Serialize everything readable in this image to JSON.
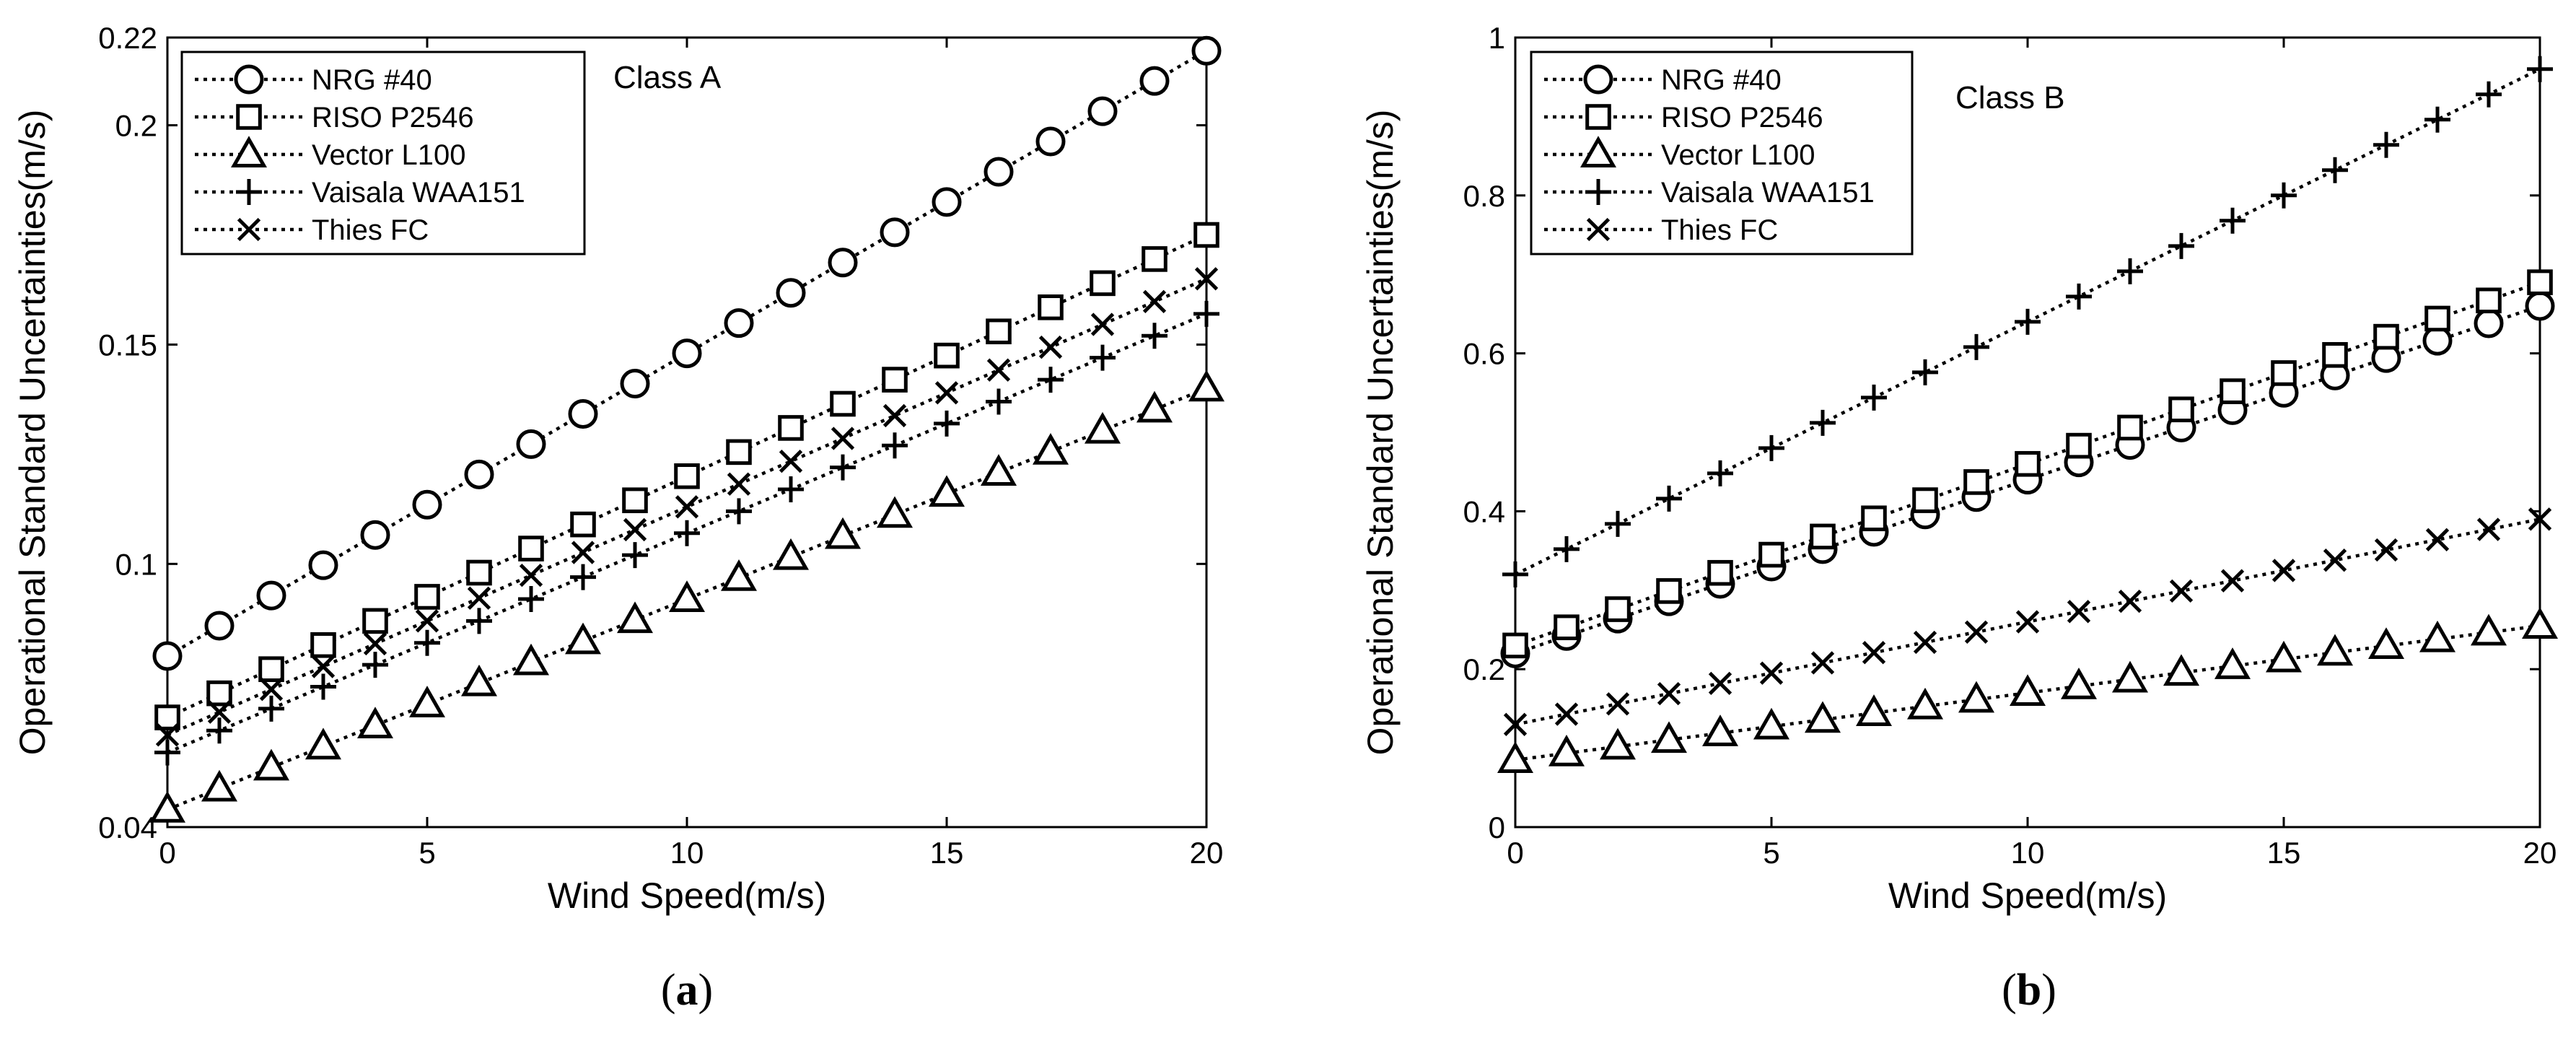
{
  "chart_data": [
    {
      "type": "line",
      "panel": "(a)",
      "annotation": "Class A",
      "xlabel": "Wind Speed(m/s)",
      "ylabel": "Operational Standard Uncertainties(m/s)",
      "xlim": [
        0,
        20
      ],
      "ylim": [
        0.04,
        0.22
      ],
      "xticks": [
        0,
        5,
        10,
        15,
        20
      ],
      "yticks": [
        0.04,
        0.1,
        0.15,
        0.2,
        0.22
      ],
      "ytick_labels": [
        "0.04",
        "0.1",
        "0.15",
        "0.2",
        "0.22"
      ],
      "grid": false,
      "legend_position": "top-left",
      "x": [
        0,
        1,
        2,
        3,
        4,
        5,
        6,
        7,
        8,
        9,
        10,
        11,
        12,
        13,
        14,
        15,
        16,
        17,
        18,
        19,
        20
      ],
      "series": [
        {
          "name": "NRG #40",
          "marker": "circle",
          "values": [
            0.079,
            0.0859,
            0.0928,
            0.0997,
            0.1066,
            0.1135,
            0.1204,
            0.1273,
            0.1342,
            0.1411,
            0.148,
            0.1549,
            0.1618,
            0.1687,
            0.1756,
            0.1825,
            0.1894,
            0.1963,
            0.2032,
            0.2101,
            0.217
          ]
        },
        {
          "name": "RISO P2546",
          "marker": "square",
          "values": [
            0.065,
            0.0705,
            0.076,
            0.0815,
            0.087,
            0.0925,
            0.098,
            0.1035,
            0.109,
            0.1145,
            0.12,
            0.1255,
            0.131,
            0.1365,
            0.142,
            0.1475,
            0.153,
            0.1585,
            0.164,
            0.1695,
            0.175
          ]
        },
        {
          "name": "Vector L100",
          "marker": "triangle",
          "values": [
            0.044,
            0.0488,
            0.0536,
            0.0584,
            0.0632,
            0.068,
            0.0728,
            0.0776,
            0.0824,
            0.0872,
            0.092,
            0.0968,
            0.1016,
            0.1064,
            0.1112,
            0.116,
            0.1208,
            0.1256,
            0.1304,
            0.1352,
            0.14
          ]
        },
        {
          "name": "Vaisala WAA151",
          "marker": "plus",
          "values": [
            0.057,
            0.062,
            0.067,
            0.072,
            0.077,
            0.082,
            0.087,
            0.092,
            0.097,
            0.102,
            0.107,
            0.112,
            0.117,
            0.122,
            0.127,
            0.132,
            0.137,
            0.142,
            0.147,
            0.152,
            0.157
          ]
        },
        {
          "name": "Thies FC",
          "marker": "x",
          "values": [
            0.061,
            0.0662,
            0.0714,
            0.0766,
            0.0818,
            0.087,
            0.0922,
            0.0974,
            0.1026,
            0.1078,
            0.113,
            0.1182,
            0.1234,
            0.1286,
            0.1338,
            0.139,
            0.1442,
            0.1494,
            0.1546,
            0.1598,
            0.165
          ]
        }
      ]
    },
    {
      "type": "line",
      "panel": "(b)",
      "annotation": "Class B",
      "xlabel": "Wind Speed(m/s)",
      "ylabel": "Operational Standard Uncertainties(m/s)",
      "xlim": [
        0,
        20
      ],
      "ylim": [
        0,
        1
      ],
      "xticks": [
        0,
        5,
        10,
        15,
        20
      ],
      "yticks": [
        0,
        0.2,
        0.4,
        0.6,
        0.8,
        1
      ],
      "ytick_labels": [
        "0",
        "0.2",
        "0.4",
        "0.6",
        "0.8",
        "1"
      ],
      "grid": false,
      "legend_position": "top-left",
      "x": [
        0,
        1,
        2,
        3,
        4,
        5,
        6,
        7,
        8,
        9,
        10,
        11,
        12,
        13,
        14,
        15,
        16,
        17,
        18,
        19,
        20
      ],
      "series": [
        {
          "name": "NRG #40",
          "marker": "circle",
          "values": [
            0.22,
            0.242,
            0.264,
            0.286,
            0.308,
            0.33,
            0.352,
            0.374,
            0.396,
            0.418,
            0.44,
            0.462,
            0.484,
            0.506,
            0.528,
            0.55,
            0.572,
            0.594,
            0.616,
            0.638,
            0.66
          ]
        },
        {
          "name": "RISO P2546",
          "marker": "square",
          "values": [
            0.23,
            0.253,
            0.276,
            0.299,
            0.322,
            0.345,
            0.368,
            0.391,
            0.414,
            0.437,
            0.46,
            0.483,
            0.506,
            0.529,
            0.552,
            0.575,
            0.598,
            0.621,
            0.644,
            0.667,
            0.69
          ]
        },
        {
          "name": "Vector L100",
          "marker": "triangle",
          "values": [
            0.085,
            0.0935,
            0.102,
            0.1105,
            0.119,
            0.1275,
            0.136,
            0.1445,
            0.153,
            0.1615,
            0.17,
            0.1785,
            0.187,
            0.1955,
            0.204,
            0.2125,
            0.221,
            0.2295,
            0.238,
            0.2465,
            0.255
          ]
        },
        {
          "name": "Vaisala WAA151",
          "marker": "plus",
          "values": [
            0.32,
            0.352,
            0.384,
            0.416,
            0.448,
            0.48,
            0.512,
            0.544,
            0.576,
            0.608,
            0.64,
            0.672,
            0.704,
            0.736,
            0.768,
            0.8,
            0.832,
            0.864,
            0.896,
            0.928,
            0.96
          ]
        },
        {
          "name": "Thies FC",
          "marker": "x",
          "values": [
            0.13,
            0.143,
            0.156,
            0.169,
            0.182,
            0.195,
            0.208,
            0.221,
            0.234,
            0.247,
            0.26,
            0.273,
            0.286,
            0.299,
            0.312,
            0.325,
            0.338,
            0.351,
            0.364,
            0.377,
            0.39
          ]
        }
      ]
    }
  ]
}
